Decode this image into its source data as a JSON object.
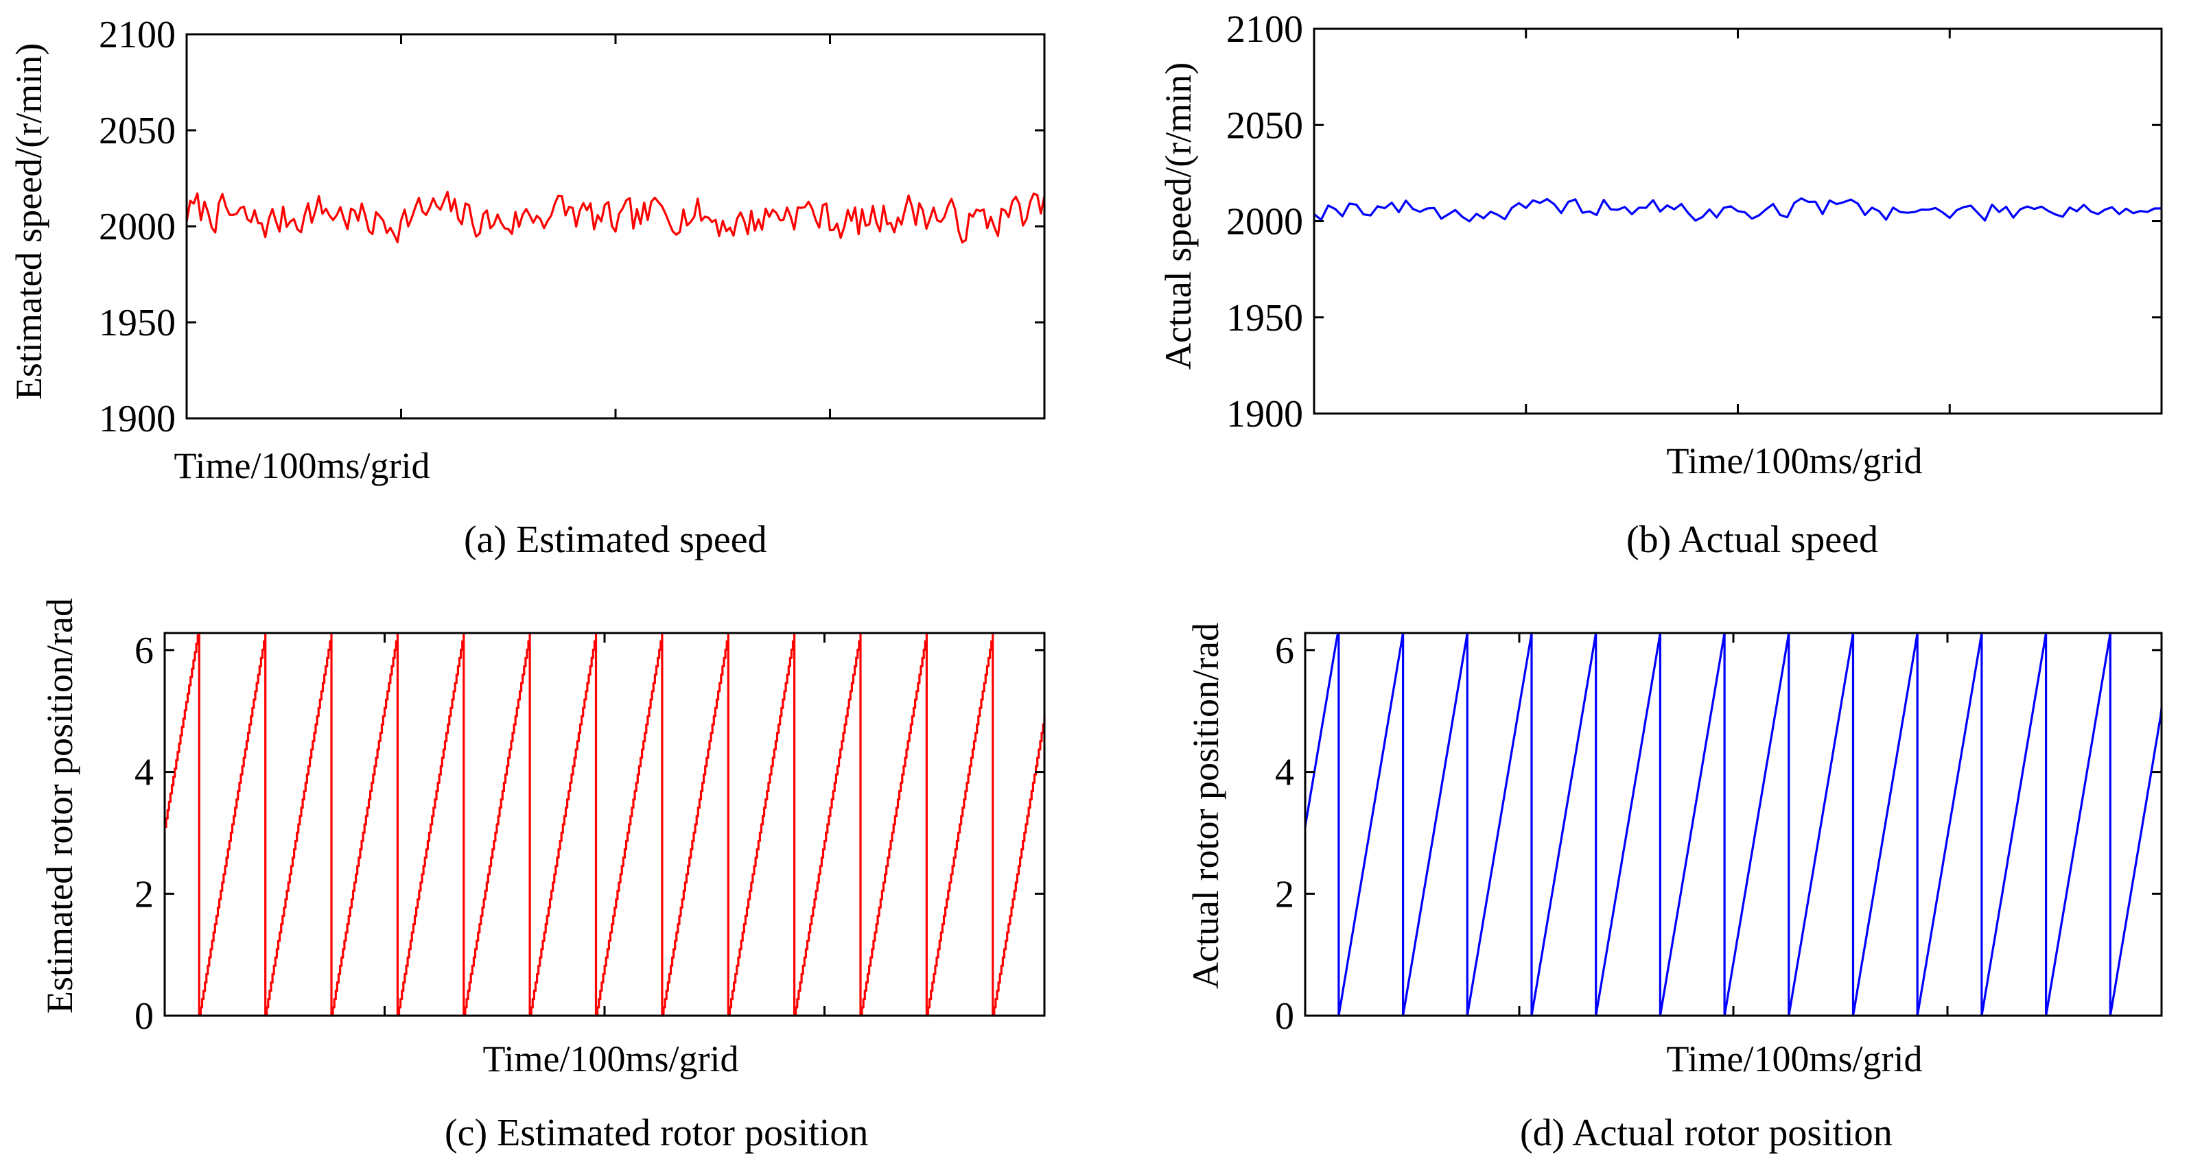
{
  "chart_data": [
    {
      "id": "a",
      "type": "line",
      "ylabel": "Estimated speed/(r/min)",
      "xlabel": "Time/100ms/grid",
      "caption": "(a) Estimated speed",
      "ylim": [
        1900,
        2100
      ],
      "yticks": [
        1900,
        1950,
        2000,
        2050,
        2100
      ],
      "ytick_labels": [
        "1900",
        "1950",
        "2000",
        "2050",
        "2100"
      ],
      "xlim": [
        0,
        4
      ],
      "xticks": [
        1,
        2,
        3
      ],
      "series": [
        {
          "name": "Estimated speed",
          "color": "#ff0000",
          "mean": 2005,
          "amplitude": 9,
          "seed": 7,
          "points": 240
        }
      ]
    },
    {
      "id": "b",
      "type": "line",
      "ylabel": "Actual speed/(r/min)",
      "xlabel": "Time/100ms/grid",
      "caption": "(b) Actual speed",
      "ylim": [
        1900,
        2100
      ],
      "yticks": [
        1900,
        1950,
        2000,
        2050,
        2100
      ],
      "ytick_labels": [
        "1900",
        "1950",
        "2000",
        "2050",
        "2100"
      ],
      "xlim": [
        0,
        4
      ],
      "xticks": [
        1,
        2,
        3
      ],
      "series": [
        {
          "name": "Actual speed",
          "color": "#0000ff",
          "mean": 2006,
          "amplitude": 5,
          "seed": 19,
          "points": 120
        }
      ]
    },
    {
      "id": "c",
      "type": "line",
      "ylabel": "Estimated rotor position/rad",
      "xlabel": "Time/100ms/grid",
      "caption": "(c) Estimated rotor position",
      "ylim": [
        0,
        6.28
      ],
      "yticks": [
        0,
        2,
        4,
        6
      ],
      "ytick_labels": [
        "0",
        "2",
        "4",
        "6"
      ],
      "xlim": [
        0,
        4
      ],
      "xticks": [
        1,
        2,
        3
      ],
      "series": [
        {
          "name": "Estimated rotor position",
          "color": "#ff0000",
          "sawtooth": true,
          "stepped": true,
          "start": 3.1,
          "end": 5.0,
          "wraps": 13
        }
      ]
    },
    {
      "id": "d",
      "type": "line",
      "ylabel": "Actual rotor position/rad",
      "xlabel": "Time/100ms/grid",
      "caption": "(d) Actual rotor position",
      "ylim": [
        0,
        6.28
      ],
      "yticks": [
        0,
        2,
        4,
        6
      ],
      "ytick_labels": [
        "0",
        "2",
        "4",
        "6"
      ],
      "xlim": [
        0,
        4
      ],
      "xticks": [
        1,
        2,
        3
      ],
      "series": [
        {
          "name": "Actual rotor position",
          "color": "#0000ff",
          "sawtooth": true,
          "stepped": false,
          "start": 3.1,
          "end": 5.1,
          "wraps": 13
        }
      ]
    }
  ]
}
